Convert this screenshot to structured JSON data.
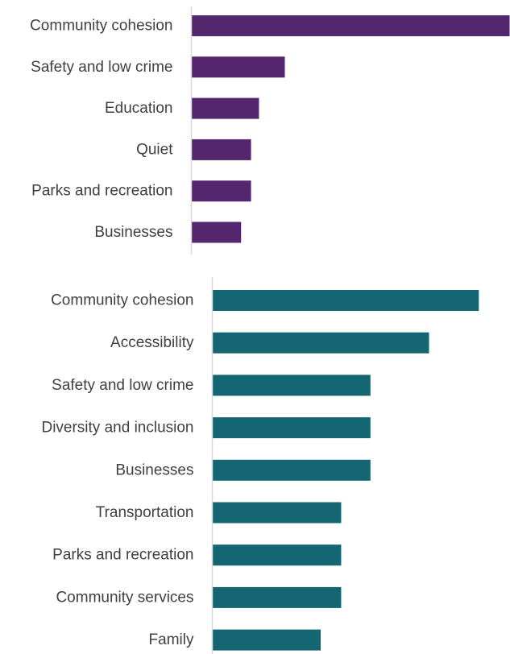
{
  "chart_data": [
    {
      "type": "bar",
      "orientation": "horizontal",
      "categories": [
        "Community cohesion",
        "Safety and low crime",
        "Education",
        "Quiet",
        "Parks and recreation",
        "Businesses"
      ],
      "values": [
        16,
        4.7,
        3.4,
        3.0,
        3.0,
        2.5
      ],
      "xlim": [
        0,
        16
      ],
      "grid": false,
      "color": "#54266e"
    },
    {
      "type": "bar",
      "orientation": "horizontal",
      "categories": [
        "Community cohesion",
        "Accessibility",
        "Safety and low crime",
        "Diversity and inclusion",
        "Businesses",
        "Transportation",
        "Parks and recreation",
        "Community services",
        "Family"
      ],
      "values": [
        9.1,
        7.4,
        5.4,
        5.4,
        5.4,
        4.4,
        4.4,
        4.4,
        3.7
      ],
      "xlim": [
        0,
        10
      ],
      "grid": false,
      "color": "#146673"
    }
  ]
}
